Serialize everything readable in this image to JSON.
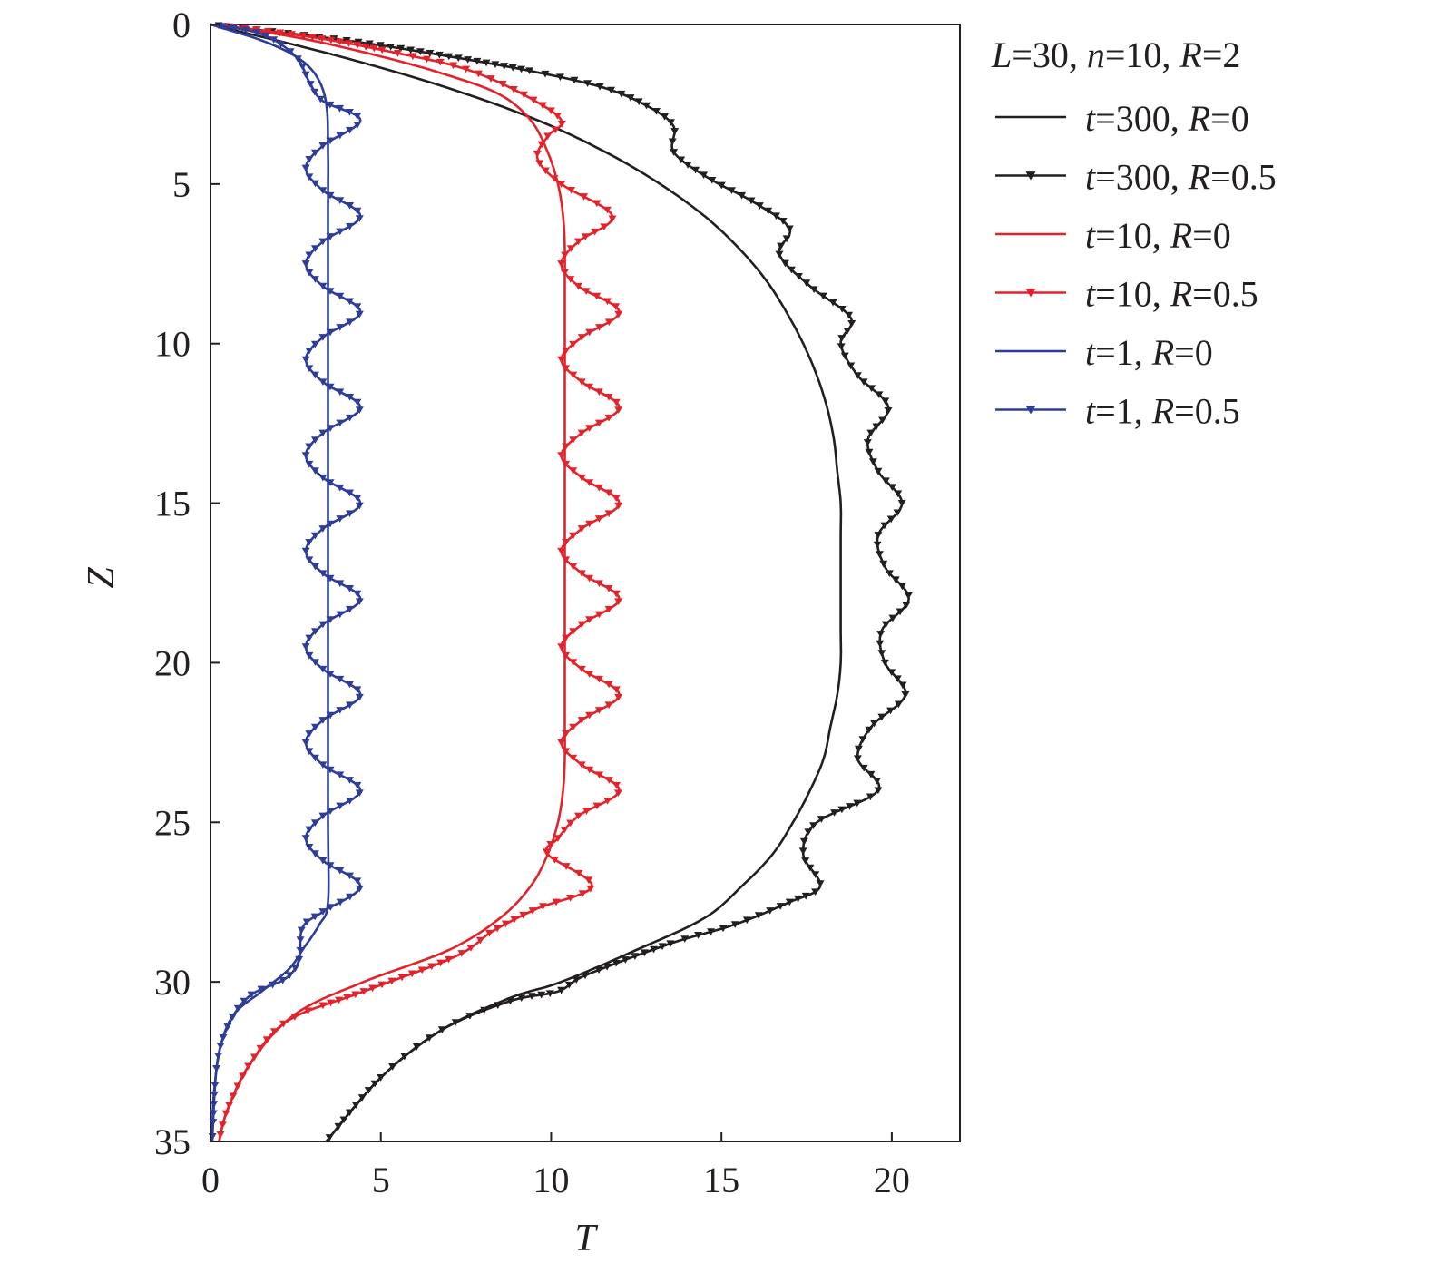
{
  "chart_data": {
    "type": "line",
    "title": "",
    "xlabel": "T",
    "ylabel": "Z",
    "xlim": [
      0,
      22
    ],
    "ylim": [
      35,
      0
    ],
    "x_ticks": [
      "0",
      "5",
      "10",
      "15",
      "20"
    ],
    "y_ticks": [
      "0",
      "5",
      "10",
      "15",
      "20",
      "25",
      "30",
      "35"
    ],
    "grid": false,
    "legend_position": "outside-right",
    "legend_header": {
      "L": "30",
      "n": "10",
      "R": "2"
    },
    "series": [
      {
        "name": "t=300, R=0",
        "legend": {
          "t": "300",
          "R": "0"
        },
        "color": "#231f20",
        "marker": "none",
        "points": [
          [
            0,
            0
          ],
          [
            3.8,
            1
          ],
          [
            7,
            2
          ],
          [
            9.6,
            3
          ],
          [
            11.6,
            4
          ],
          [
            13.2,
            5
          ],
          [
            14.5,
            6
          ],
          [
            15.5,
            7
          ],
          [
            16.3,
            8
          ],
          [
            16.9,
            9
          ],
          [
            17.4,
            10
          ],
          [
            17.8,
            11
          ],
          [
            18.1,
            12
          ],
          [
            18.3,
            13
          ],
          [
            18.4,
            14
          ],
          [
            18.5,
            15
          ],
          [
            18.5,
            16
          ],
          [
            18.5,
            17
          ],
          [
            18.5,
            18
          ],
          [
            18.5,
            19
          ],
          [
            18.5,
            20
          ],
          [
            18.4,
            21
          ],
          [
            18.2,
            22
          ],
          [
            18,
            23
          ],
          [
            17.6,
            24
          ],
          [
            17.1,
            25
          ],
          [
            16.5,
            26
          ],
          [
            15.6,
            27
          ],
          [
            14.5,
            28
          ],
          [
            12.5,
            29
          ],
          [
            10.3,
            30
          ],
          [
            8.8,
            30.5
          ],
          [
            6.8,
            31.5
          ],
          [
            5,
            33
          ],
          [
            3.4,
            35
          ]
        ]
      },
      {
        "name": "t=300, R=0.5",
        "legend": {
          "t": "300",
          "R": "0.5"
        },
        "color": "#231f20",
        "marker": "triangle-down",
        "points": [
          [
            0,
            0
          ],
          [
            4,
            0.5
          ],
          [
            7,
            1
          ],
          [
            9.6,
            1.5
          ],
          [
            11.6,
            2
          ],
          [
            12.9,
            2.6
          ],
          [
            13.6,
            3.2
          ],
          [
            13.6,
            4
          ],
          [
            14.6,
            4.8
          ],
          [
            16,
            5.6
          ],
          [
            17,
            6.4
          ],
          [
            16.7,
            7.2
          ],
          [
            17.6,
            8.2
          ],
          [
            18.8,
            9.2
          ],
          [
            18.5,
            10
          ],
          [
            19,
            11
          ],
          [
            19.9,
            12
          ],
          [
            19.3,
            13
          ],
          [
            19.6,
            14
          ],
          [
            20.3,
            15
          ],
          [
            19.6,
            16
          ],
          [
            19.8,
            17
          ],
          [
            20.5,
            18
          ],
          [
            19.7,
            19
          ],
          [
            19.8,
            20
          ],
          [
            20.4,
            21
          ],
          [
            19.4,
            22
          ],
          [
            19,
            23
          ],
          [
            19.6,
            24
          ],
          [
            17.8,
            25
          ],
          [
            17.4,
            26
          ],
          [
            17.9,
            27
          ],
          [
            17,
            27.5
          ],
          [
            15.4,
            28.2
          ],
          [
            13.5,
            28.8
          ],
          [
            11,
            29.8
          ],
          [
            10.2,
            30.3
          ],
          [
            8.8,
            30.6
          ],
          [
            6.8,
            31.5
          ],
          [
            5,
            33
          ],
          [
            3.4,
            35
          ]
        ]
      },
      {
        "name": "t=10, R=0",
        "legend": {
          "t": "10",
          "R": "0"
        },
        "color": "#e3232c",
        "marker": "none",
        "points": [
          [
            0,
            0
          ],
          [
            2.5,
            0.4
          ],
          [
            5,
            1
          ],
          [
            7,
            1.6
          ],
          [
            8.5,
            2.2
          ],
          [
            9.4,
            3
          ],
          [
            9.9,
            4
          ],
          [
            10.2,
            5
          ],
          [
            10.35,
            6
          ],
          [
            10.4,
            7
          ],
          [
            10.4,
            8
          ],
          [
            10.4,
            9
          ],
          [
            10.4,
            10
          ],
          [
            10.4,
            12
          ],
          [
            10.4,
            15
          ],
          [
            10.4,
            18
          ],
          [
            10.4,
            20
          ],
          [
            10.4,
            22
          ],
          [
            10.4,
            23
          ],
          [
            10.35,
            24
          ],
          [
            10.2,
            25
          ],
          [
            9.9,
            26
          ],
          [
            9.4,
            27
          ],
          [
            8.5,
            28
          ],
          [
            7,
            29
          ],
          [
            4.5,
            30
          ],
          [
            2.5,
            31
          ],
          [
            1.2,
            32.5
          ],
          [
            0.5,
            34
          ],
          [
            0.25,
            35
          ]
        ]
      },
      {
        "name": "t=10, R=0.5",
        "legend": {
          "t": "10",
          "R": "0.5"
        },
        "color": "#e3232c",
        "marker": "triangle-down",
        "points": [
          [
            0,
            0
          ],
          [
            3,
            0.4
          ],
          [
            5.5,
            0.9
          ],
          [
            7.5,
            1.4
          ],
          [
            9.2,
            2.2
          ],
          [
            10.3,
            3
          ],
          [
            9.9,
            3.5
          ],
          [
            9.6,
            4.2
          ],
          [
            10.3,
            5
          ],
          [
            11.8,
            6
          ],
          [
            10.8,
            6.8
          ],
          [
            10.3,
            7.5
          ],
          [
            10.8,
            8.2
          ],
          [
            12,
            9
          ],
          [
            10.9,
            9.8
          ],
          [
            10.3,
            10.5
          ],
          [
            10.9,
            11.2
          ],
          [
            12,
            12
          ],
          [
            10.9,
            12.8
          ],
          [
            10.3,
            13.5
          ],
          [
            10.9,
            14.2
          ],
          [
            12,
            15
          ],
          [
            10.9,
            15.8
          ],
          [
            10.3,
            16.5
          ],
          [
            10.9,
            17.2
          ],
          [
            12,
            18
          ],
          [
            10.9,
            18.8
          ],
          [
            10.3,
            19.5
          ],
          [
            10.9,
            20.2
          ],
          [
            12,
            21
          ],
          [
            10.9,
            21.8
          ],
          [
            10.3,
            22.5
          ],
          [
            10.9,
            23.2
          ],
          [
            12,
            24
          ],
          [
            10.8,
            24.8
          ],
          [
            10.2,
            25.5
          ],
          [
            9.9,
            26
          ],
          [
            11.2,
            27
          ],
          [
            9.6,
            27.7
          ],
          [
            8.3,
            28.4
          ],
          [
            7.2,
            29.2
          ],
          [
            4.5,
            30.3
          ],
          [
            2.3,
            31.2
          ],
          [
            1.2,
            32.5
          ],
          [
            0.5,
            34
          ],
          [
            0.25,
            35
          ]
        ]
      },
      {
        "name": "t=1, R=0",
        "legend": {
          "t": "1",
          "R": "0"
        },
        "color": "#2e3d98",
        "marker": "none",
        "points": [
          [
            0,
            0
          ],
          [
            1.5,
            0.5
          ],
          [
            2.5,
            1
          ],
          [
            3.1,
            1.6
          ],
          [
            3.4,
            2.5
          ],
          [
            3.45,
            4
          ],
          [
            3.45,
            6
          ],
          [
            3.45,
            10
          ],
          [
            3.45,
            15
          ],
          [
            3.45,
            20
          ],
          [
            3.45,
            25
          ],
          [
            3.45,
            27.5
          ],
          [
            3.2,
            28.2
          ],
          [
            2.7,
            29
          ],
          [
            2.3,
            29.6
          ],
          [
            1.5,
            30.3
          ],
          [
            0.7,
            31
          ],
          [
            0.3,
            32
          ],
          [
            0.1,
            33.5
          ],
          [
            0.05,
            35
          ]
        ]
      },
      {
        "name": "t=1, R=0.5",
        "legend": {
          "t": "1",
          "R": "0.5"
        },
        "color": "#2e3d98",
        "marker": "triangle-down",
        "points": [
          [
            0,
            0
          ],
          [
            1.5,
            0.3
          ],
          [
            2.5,
            1
          ],
          [
            2.9,
            1.8
          ],
          [
            3.3,
            2.4
          ],
          [
            4.4,
            3
          ],
          [
            3.3,
            3.8
          ],
          [
            2.8,
            4.5
          ],
          [
            3.3,
            5.2
          ],
          [
            4.4,
            6
          ],
          [
            3.3,
            6.8
          ],
          [
            2.8,
            7.5
          ],
          [
            3.3,
            8.2
          ],
          [
            4.4,
            9
          ],
          [
            3.3,
            9.8
          ],
          [
            2.8,
            10.5
          ],
          [
            3.3,
            11.2
          ],
          [
            4.4,
            12
          ],
          [
            3.3,
            12.8
          ],
          [
            2.8,
            13.5
          ],
          [
            3.3,
            14.2
          ],
          [
            4.4,
            15
          ],
          [
            3.3,
            15.8
          ],
          [
            2.8,
            16.5
          ],
          [
            3.3,
            17.2
          ],
          [
            4.4,
            18
          ],
          [
            3.3,
            18.8
          ],
          [
            2.8,
            19.5
          ],
          [
            3.3,
            20.2
          ],
          [
            4.4,
            21
          ],
          [
            3.3,
            21.8
          ],
          [
            2.8,
            22.5
          ],
          [
            3.3,
            23.2
          ],
          [
            4.4,
            24
          ],
          [
            3.3,
            24.8
          ],
          [
            2.8,
            25.5
          ],
          [
            3.3,
            26.2
          ],
          [
            4.4,
            27
          ],
          [
            3.3,
            27.8
          ],
          [
            2.7,
            28.3
          ],
          [
            2.6,
            29.3
          ],
          [
            2.2,
            29.9
          ],
          [
            1.2,
            30.4
          ],
          [
            0.6,
            31.2
          ],
          [
            0.2,
            32.5
          ],
          [
            0.05,
            35
          ]
        ]
      }
    ]
  }
}
